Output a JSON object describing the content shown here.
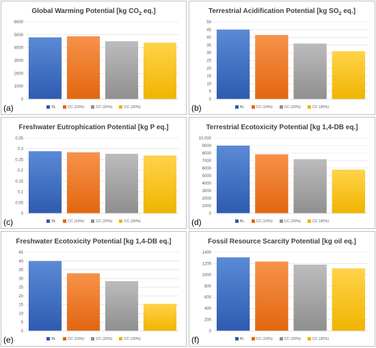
{
  "legend": [
    "BL",
    "CC (10%)",
    "CC (20%)",
    "CC (30%)"
  ],
  "colors": {
    "BL": [
      "#5b8ad6",
      "#2e5bb0"
    ],
    "CC (10%)": [
      "#f7924a",
      "#e2660f"
    ],
    "CC (20%)": [
      "#bcbcbc",
      "#8f8f8f"
    ],
    "CC (30%)": [
      "#ffd34a",
      "#f0b400"
    ]
  },
  "chart_data": [
    {
      "type": "bar",
      "label": "(a)",
      "title_parts": [
        "Global Warming Potential [kg CO",
        "2",
        " eq.]"
      ],
      "categories": [
        "BL",
        "CC (10%)",
        "CC (20%)",
        "CC (30%)"
      ],
      "values": [
        4800,
        4880,
        4500,
        4380
      ],
      "yticks": [
        "0",
        "1000",
        "2000",
        "3000",
        "4000",
        "5000",
        "6000"
      ],
      "ylim": [
        0,
        6000
      ],
      "grid": true
    },
    {
      "type": "bar",
      "label": "(b)",
      "title_parts": [
        "Terrestrial Acidification Potential [kg SO",
        "2",
        " eq.]"
      ],
      "categories": [
        "BL",
        "CC (10%)",
        "CC (20%)",
        "CC (30%)"
      ],
      "values": [
        45,
        41.5,
        36,
        31
      ],
      "yticks": [
        "0",
        "5",
        "10",
        "15",
        "20",
        "25",
        "30",
        "35",
        "40",
        "45",
        "50"
      ],
      "ylim": [
        0,
        50
      ],
      "grid": true
    },
    {
      "type": "bar",
      "label": "(c)",
      "title_parts": [
        "Freshwater Eutrophication Potential [kg P eq.]"
      ],
      "categories": [
        "BL",
        "CC (10%)",
        "CC (20%)",
        "CC (30%)"
      ],
      "values": [
        0.289,
        0.284,
        0.277,
        0.269
      ],
      "yticks": [
        "0",
        "0.05",
        "0.1",
        "0.15",
        "0.2",
        "0.25",
        "0.3",
        "0.35"
      ],
      "ylim": [
        0,
        0.35
      ],
      "grid": true
    },
    {
      "type": "bar",
      "label": "(d)",
      "title_parts": [
        "Terrestrial Ecotoxicity Potential [kg 1,4-DB eq.]"
      ],
      "categories": [
        "BL",
        "CC (10%)",
        "CC (20%)",
        "CC (30%)"
      ],
      "values": [
        9000,
        7850,
        7200,
        5800
      ],
      "yticks": [
        "0",
        "1000",
        "2000",
        "3000",
        "4000",
        "5000",
        "6000",
        "7000",
        "8000",
        "9000",
        "10,000"
      ],
      "ylim": [
        0,
        10000
      ],
      "grid": true
    },
    {
      "type": "bar",
      "label": "(e)",
      "title_parts": [
        "Freshwater Ecotoxicity Potential [kg 1,4-DB eq.]"
      ],
      "categories": [
        "BL",
        "CC (10%)",
        "CC (20%)",
        "CC (30%)"
      ],
      "values": [
        40,
        33,
        28.5,
        15.5
      ],
      "yticks": [
        "0",
        "5",
        "10",
        "15",
        "20",
        "25",
        "30",
        "35",
        "40",
        "45"
      ],
      "ylim": [
        0,
        45
      ],
      "grid": true
    },
    {
      "type": "bar",
      "label": "(f)",
      "title_parts": [
        "Fossil Resource Scarcity Potential [kg oil eq.]"
      ],
      "categories": [
        "BL",
        "CC (10%)",
        "CC (20%)",
        "CC (30%)"
      ],
      "values": [
        1310,
        1235,
        1180,
        1115
      ],
      "yticks": [
        "0",
        "200",
        "400",
        "600",
        "800",
        "1000",
        "1200",
        "1400"
      ],
      "ylim": [
        0,
        1400
      ],
      "grid": true
    }
  ]
}
